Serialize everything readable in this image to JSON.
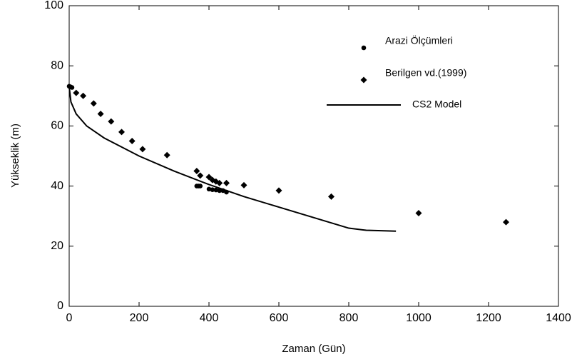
{
  "chart_data": {
    "type": "scatter-line",
    "x_label": "Zaman (Gün)",
    "y_label": "Yükseklik (m)",
    "xlim": [
      0,
      1400
    ],
    "ylim": [
      0,
      100
    ],
    "xticks": [
      0,
      200,
      400,
      600,
      800,
      1000,
      1200,
      1400
    ],
    "yticks": [
      0,
      20,
      40,
      60,
      80,
      100
    ],
    "grid": false,
    "series": [
      {
        "name": "Arazi Ölçümleri",
        "marker": "circle",
        "color": "#000000",
        "x": [
          0,
          4,
          8,
          365,
          370,
          375,
          400,
          410,
          420,
          430,
          440,
          450
        ],
        "values": [
          73.2,
          73,
          72.8,
          40,
          40,
          40,
          39,
          38.8,
          38.7,
          38.5,
          38.5,
          38
        ]
      },
      {
        "name": "Berilgen vd.(1999)",
        "marker": "diamond",
        "color": "#000000",
        "x": [
          20,
          40,
          70,
          90,
          120,
          150,
          180,
          210,
          280,
          365,
          375,
          400,
          410,
          420,
          430,
          450,
          500,
          600,
          750,
          1000,
          1250
        ],
        "values": [
          71,
          70,
          67.5,
          64,
          61.5,
          58,
          55,
          52.3,
          50.3,
          45,
          43.5,
          43,
          42,
          41.5,
          41,
          41,
          40.3,
          38.5,
          36.5,
          31,
          28
        ]
      },
      {
        "name": "CS2 Model",
        "marker": "line",
        "color": "#000000",
        "x": [
          0,
          5,
          20,
          50,
          100,
          200,
          300,
          400,
          500,
          600,
          700,
          800,
          850,
          935
        ],
        "values": [
          73,
          68,
          64,
          60,
          56,
          50,
          45,
          40.5,
          36.5,
          33,
          29.5,
          26,
          25.3,
          25
        ]
      }
    ]
  }
}
